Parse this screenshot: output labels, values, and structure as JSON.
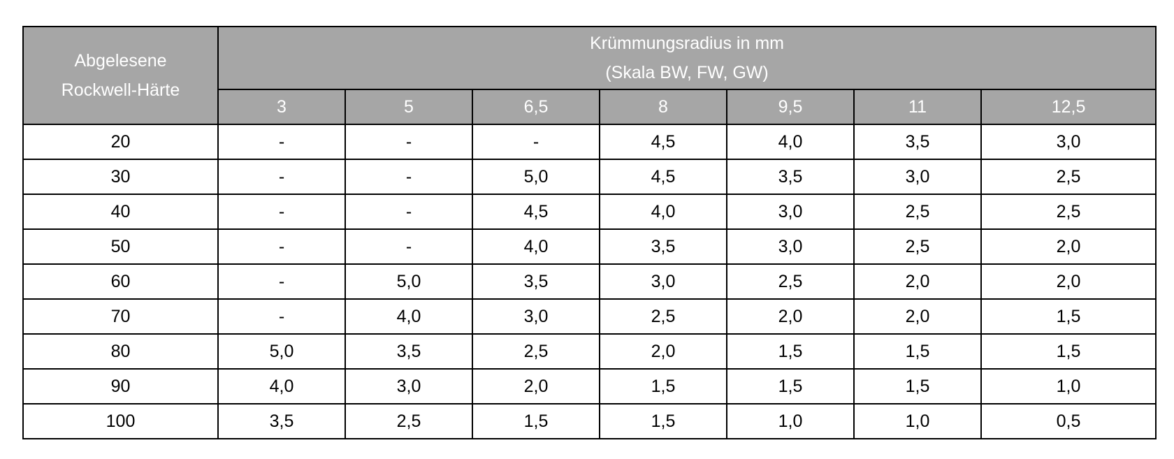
{
  "table": {
    "row_header": [
      "Abgelesene",
      "Rockwell-Härte"
    ],
    "column_group_header": [
      "Krümmungsradius in mm",
      "(Skala BW, FW, GW)"
    ],
    "columns": [
      "3",
      "5",
      "6,5",
      "8",
      "9,5",
      "11",
      "12,5"
    ],
    "rows": [
      [
        "20",
        "-",
        "-",
        "-",
        "4,5",
        "4,0",
        "3,5",
        "3,0"
      ],
      [
        "30",
        "-",
        "-",
        "5,0",
        "4,5",
        "3,5",
        "3,0",
        "2,5"
      ],
      [
        "40",
        "-",
        "-",
        "4,5",
        "4,0",
        "3,0",
        "2,5",
        "2,5"
      ],
      [
        "50",
        "-",
        "-",
        "4,0",
        "3,5",
        "3,0",
        "2,5",
        "2,0"
      ],
      [
        "60",
        "-",
        "5,0",
        "3,5",
        "3,0",
        "2,5",
        "2,0",
        "2,0"
      ],
      [
        "70",
        "-",
        "4,0",
        "3,0",
        "2,5",
        "2,0",
        "2,0",
        "1,5"
      ],
      [
        "80",
        "5,0",
        "3,5",
        "2,5",
        "2,0",
        "1,5",
        "1,5",
        "1,5"
      ],
      [
        "90",
        "4,0",
        "3,0",
        "2,0",
        "1,5",
        "1,5",
        "1,5",
        "1,0"
      ],
      [
        "100",
        "3,5",
        "2,5",
        "1,5",
        "1,5",
        "1,0",
        "1,0",
        "0,5"
      ]
    ]
  }
}
